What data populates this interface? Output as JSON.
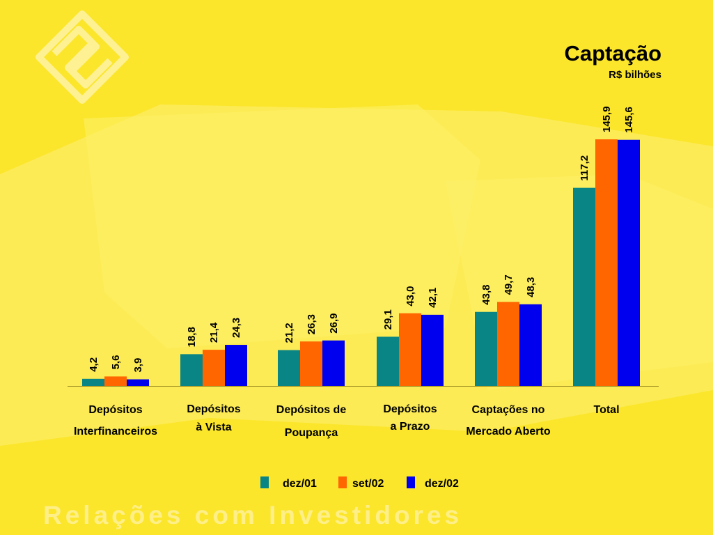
{
  "footer_text": "Relações com Investidores",
  "colors": {
    "background": "#fbe62c",
    "teal": "#0a8585",
    "orange": "#ff6600",
    "blue": "#0000ee"
  },
  "chart_data": {
    "type": "bar",
    "title": "Captação",
    "subtitle": "R$ bilhões",
    "categories": [
      [
        "Depósitos",
        "Interfinanceiros"
      ],
      [
        "Depósitos",
        "à Vista"
      ],
      [
        "Depósitos de",
        "Poupança"
      ],
      [
        "Depósitos",
        "a Prazo"
      ],
      [
        "Captações no",
        "Mercado Aberto"
      ],
      [
        "Total"
      ]
    ],
    "series": [
      {
        "name": "dez/01",
        "color": "#0a8585",
        "values": [
          4.2,
          18.8,
          21.2,
          29.1,
          43.8,
          117.2
        ],
        "labels": [
          "4,2",
          "18,8",
          "21,2",
          "29,1",
          "43,8",
          "117,2"
        ]
      },
      {
        "name": "set/02",
        "color": "#ff6600",
        "values": [
          5.6,
          21.4,
          26.3,
          43.0,
          49.7,
          145.9
        ],
        "labels": [
          "5,6",
          "21,4",
          "26,3",
          "43,0",
          "49,7",
          "145,9"
        ]
      },
      {
        "name": "dez/02",
        "color": "#0000ee",
        "values": [
          3.9,
          24.3,
          26.9,
          42.1,
          48.3,
          145.6
        ],
        "labels": [
          "3,9",
          "24,3",
          "26,9",
          "42,1",
          "48,3",
          "145,6"
        ]
      }
    ],
    "ylim": [
      0,
      145.9
    ],
    "grid": false,
    "legend_position": "bottom"
  }
}
